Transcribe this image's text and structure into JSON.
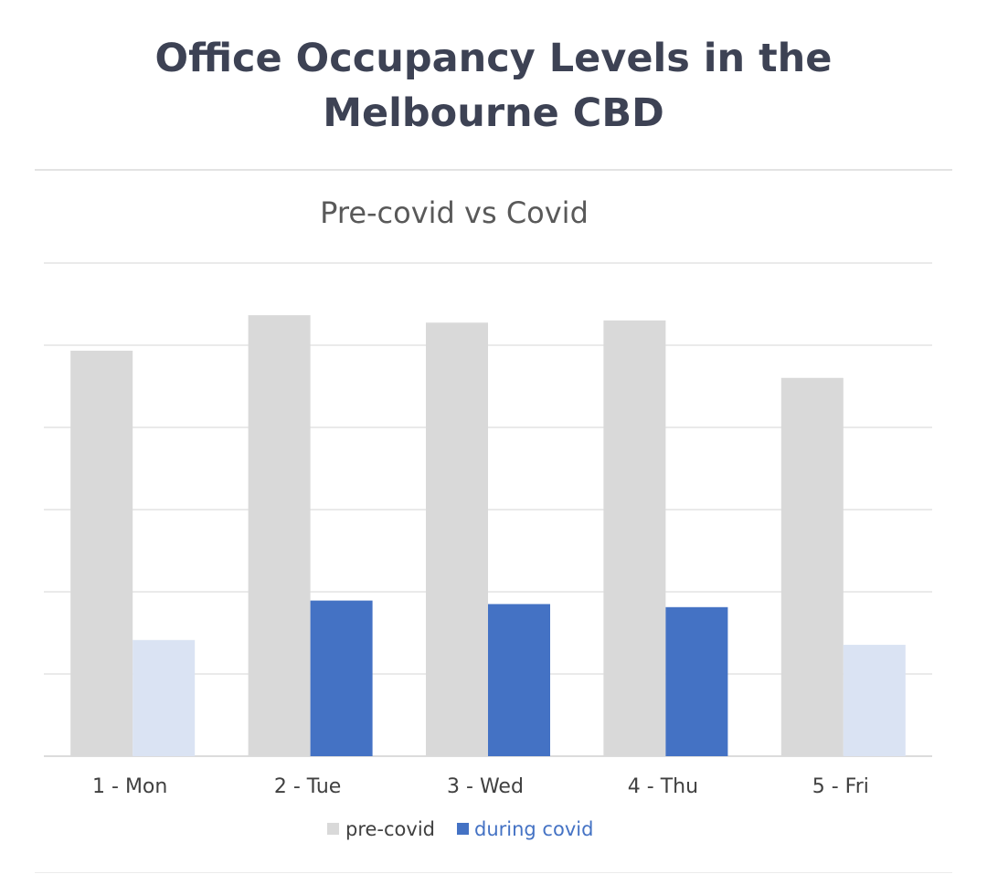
{
  "header": {
    "title_line1": "Office Occupancy Levels in the",
    "title_line2": "Melbourne CBD"
  },
  "chart_data": {
    "type": "bar",
    "title": "Pre-covid vs Covid",
    "categories": [
      "1 - Mon",
      "2 - Tue",
      "3 - Wed",
      "4 - Thu",
      "5 - Fri"
    ],
    "series": [
      {
        "name": "pre-covid",
        "color": "#d9d9d9",
        "values": [
          92.5,
          100.6,
          98.9,
          99.4,
          86.3
        ]
      },
      {
        "name": "during covid",
        "color": "#4472c4",
        "highlight": [
          false,
          true,
          true,
          true,
          false
        ],
        "muted_color": "#dae3f3",
        "values": [
          26.5,
          35.5,
          34.7,
          34.0,
          25.4
        ]
      }
    ],
    "ylim": [
      0,
      112.5
    ],
    "gridlines": 6,
    "legend_position": "bottom",
    "colors": {
      "legend_active_text": "#4472c4",
      "text": "#404040"
    }
  }
}
